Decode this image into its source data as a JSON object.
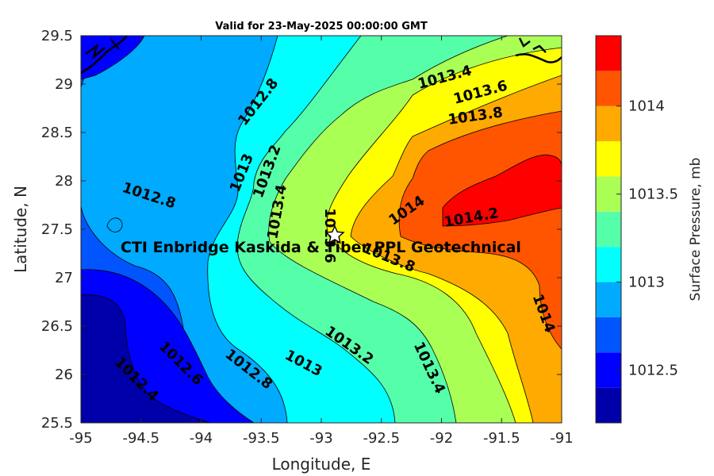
{
  "chart_data": {
    "type": "contour",
    "title": "Valid for 23-May-2025 00:00:00 GMT",
    "xlabel": "Longitude, E",
    "ylabel": "Latitude, N",
    "xlim": [
      -95,
      -91
    ],
    "ylim": [
      25.5,
      29.5
    ],
    "xticks": [
      -95,
      -94.5,
      -94,
      -93.5,
      -93,
      -92.5,
      -92,
      -91.5,
      -91
    ],
    "xtick_labels": [
      "-95",
      "-94.5",
      "-94",
      "-93.5",
      "-93",
      "-92.5",
      "-92",
      "-91.5",
      "-91"
    ],
    "yticks": [
      25.5,
      26,
      26.5,
      27,
      27.5,
      28,
      28.5,
      29,
      29.5
    ],
    "ytick_labels": [
      "25.5",
      "26",
      "26.5",
      "27",
      "27.5",
      "28",
      "28.5",
      "29",
      "29.5"
    ],
    "colorbar": {
      "label": "Surface Pressure, mb",
      "range": [
        1012.2,
        1014.4
      ],
      "ticks": [
        1012.5,
        1013,
        1013.5,
        1014
      ],
      "tick_labels": [
        "1012.5",
        "1013",
        "1013.5",
        "1014"
      ],
      "levels": [
        1012.2,
        1012.4,
        1012.6,
        1012.8,
        1013.0,
        1013.2,
        1013.4,
        1013.6,
        1013.8,
        1014.0,
        1014.2,
        1014.4
      ],
      "colors": [
        "#0000aa",
        "#0000ff",
        "#0055ff",
        "#00aaff",
        "#00ffff",
        "#55ffaa",
        "#aaff55",
        "#ffff00",
        "#ffaa00",
        "#ff5500",
        "#ff0000",
        "#aa0000"
      ]
    },
    "contour_labels": [
      {
        "text": "1012.8",
        "lon": -93.7,
        "lat": 28.78
      },
      {
        "text": "1012.8",
        "lon": -94.67,
        "lat": 27.88
      },
      {
        "text": "1013",
        "lon": -93.6,
        "lat": 28.1
      },
      {
        "text": "1013.2",
        "lon": -93.42,
        "lat": 28.1
      },
      {
        "text": "1013.4",
        "lon": -93.35,
        "lat": 27.65
      },
      {
        "text": "1013.4",
        "lon": -92.32,
        "lat": 29.03
      },
      {
        "text": "1013.6",
        "lon": -91.89,
        "lat": 28.9
      },
      {
        "text": "1013.8",
        "lon": -91.9,
        "lat": 28.65
      },
      {
        "text": "1013.6",
        "lon": -93.03,
        "lat": 27.47
      },
      {
        "text": "1013.8",
        "lon": -92.55,
        "lat": 27.15
      },
      {
        "text": "1014",
        "lon": -92.27,
        "lat": 27.7
      },
      {
        "text": "1014.2",
        "lon": -91.75,
        "lat": 27.55
      },
      {
        "text": "1014",
        "lon": -91.13,
        "lat": 26.58
      },
      {
        "text": "1013.4",
        "lon": -92.12,
        "lat": 26.08
      },
      {
        "text": "1013.2",
        "lon": -92.97,
        "lat": 26.32
      },
      {
        "text": "1013",
        "lon": -93.4,
        "lat": 26.07
      },
      {
        "text": "1012.8",
        "lon": -93.95,
        "lat": 26.03
      },
      {
        "text": "1012.6",
        "lon": -94.32,
        "lat": 26.1
      },
      {
        "text": "1012.4",
        "lon": -94.7,
        "lat": 25.85
      }
    ],
    "markers": [
      {
        "symbol": "star",
        "lon": -92.85,
        "lat": 27.45
      }
    ],
    "annotation": {
      "text": "CTI Enbridge  Kaskida & Tiber PPL Geotechnical",
      "lon": -94.67,
      "lat": 27.31
    }
  }
}
